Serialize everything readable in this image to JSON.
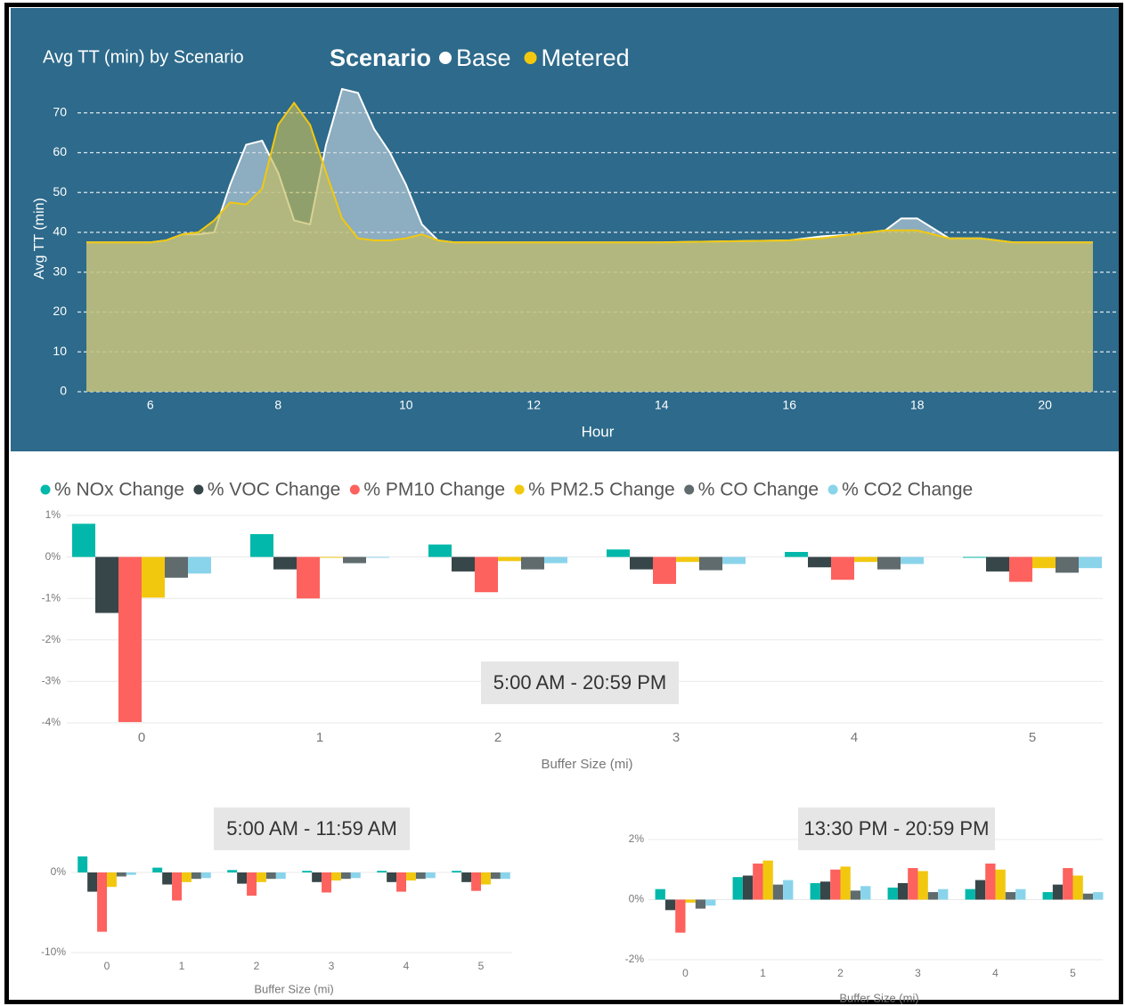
{
  "chart_data": [
    {
      "type": "area",
      "title": "Avg TT (min) by Scenario",
      "legend_title": "Scenario",
      "x_label": "Hour",
      "y_label": "Avg TT (min)",
      "x": [
        5,
        6,
        6.25,
        6.5,
        6.75,
        7,
        7.25,
        7.5,
        7.75,
        8,
        8.25,
        8.5,
        8.75,
        9,
        9.25,
        9.5,
        9.75,
        10,
        10.25,
        10.5,
        10.75,
        12,
        14,
        16,
        16.5,
        17,
        17.5,
        17.75,
        18,
        18.25,
        18.5,
        19,
        19.5,
        20,
        20.75
      ],
      "series": [
        {
          "name": "Base",
          "color": "#ffffff",
          "values": [
            37.5,
            37.5,
            38,
            39.5,
            39.5,
            40,
            52,
            62,
            63,
            55,
            43,
            42,
            62,
            76,
            75,
            66,
            60,
            52,
            42,
            38,
            37.5,
            37.5,
            37.5,
            38,
            39,
            39.5,
            40.5,
            43.5,
            43.5,
            41,
            38.5,
            38.5,
            37.5,
            37.5,
            37.5
          ]
        },
        {
          "name": "Metered",
          "color": "#f2c80f",
          "values": [
            37.5,
            37.5,
            38,
            39.5,
            40,
            43,
            47.5,
            47,
            51,
            67,
            72.5,
            67,
            55,
            43.5,
            38.5,
            38,
            38,
            38.5,
            39.5,
            38,
            37.5,
            37.5,
            37.5,
            38,
            38.5,
            39.5,
            40.5,
            40.5,
            40.5,
            39.5,
            38.5,
            38.5,
            37.5,
            37.5,
            37.5
          ]
        }
      ],
      "xlim": [
        5,
        20.75
      ],
      "xticks": [
        6,
        8,
        10,
        12,
        14,
        16,
        18,
        20
      ],
      "ylim": [
        0,
        80
      ],
      "yticks": [
        0,
        10,
        20,
        30,
        40,
        50,
        60,
        70
      ],
      "grid": true
    },
    {
      "type": "bar",
      "annotation": "5:00 AM - 20:59 PM",
      "x_label": "Buffer Size (mi)",
      "categories": [
        "0",
        "1",
        "2",
        "3",
        "4",
        "5"
      ],
      "series": [
        {
          "name": "% NOx Change",
          "color": "#01b8aa",
          "values": [
            0.8,
            0.55,
            0.3,
            0.18,
            0.12,
            -0.02
          ]
        },
        {
          "name": "% VOC Change",
          "color": "#374649",
          "values": [
            -1.35,
            -0.3,
            -0.35,
            -0.3,
            -0.25,
            -0.35
          ]
        },
        {
          "name": "% PM10 Change",
          "color": "#fd625e",
          "values": [
            -3.98,
            -1.0,
            -0.85,
            -0.65,
            -0.55,
            -0.6
          ]
        },
        {
          "name": "% PM2.5 Change",
          "color": "#f2c80f",
          "values": [
            -0.98,
            -0.02,
            -0.1,
            -0.12,
            -0.12,
            -0.27
          ]
        },
        {
          "name": "% CO Change",
          "color": "#5f6b6d",
          "values": [
            -0.5,
            -0.15,
            -0.3,
            -0.32,
            -0.3,
            -0.38
          ]
        },
        {
          "name": "% CO2 Change",
          "color": "#8ad4eb",
          "values": [
            -0.4,
            -0.02,
            -0.15,
            -0.17,
            -0.17,
            -0.27
          ]
        }
      ],
      "ylim": [
        -4,
        1
      ],
      "yticks": [
        {
          "value": -4,
          "label": "-4%"
        },
        {
          "value": -3,
          "label": "-3%"
        },
        {
          "value": -2,
          "label": "-2%"
        },
        {
          "value": -1,
          "label": "-1%"
        },
        {
          "value": 0,
          "label": "0%"
        },
        {
          "value": 1,
          "label": "1%"
        }
      ],
      "grid": true
    },
    {
      "type": "bar",
      "annotation": "5:00 AM - 11:59 AM",
      "x_label": "Buffer Size (mi)",
      "categories": [
        "0",
        "1",
        "2",
        "3",
        "4",
        "5"
      ],
      "series": [
        {
          "color": "#01b8aa",
          "values": [
            2,
            0.6,
            0.3,
            0.2,
            0.2,
            0.2
          ]
        },
        {
          "color": "#374649",
          "values": [
            -2.4,
            -1.5,
            -1.4,
            -1.2,
            -1.2,
            -1.2
          ]
        },
        {
          "color": "#fd625e",
          "values": [
            -7.4,
            -3.5,
            -2.9,
            -2.5,
            -2.4,
            -2.3
          ]
        },
        {
          "color": "#f2c80f",
          "values": [
            -1.8,
            -1.2,
            -1.2,
            -1.0,
            -1.0,
            -1.5
          ]
        },
        {
          "color": "#5f6b6d",
          "values": [
            -0.5,
            -0.8,
            -0.8,
            -0.8,
            -0.8,
            -0.8
          ]
        },
        {
          "color": "#8ad4eb",
          "values": [
            -0.3,
            -0.7,
            -0.8,
            -0.7,
            -0.7,
            -0.8
          ]
        }
      ],
      "ylim": [
        -10,
        2
      ],
      "yticks": [
        {
          "value": -10,
          "label": "-10%"
        },
        {
          "value": 0,
          "label": "0%"
        }
      ],
      "grid": true
    },
    {
      "type": "bar",
      "annotation": "13:30 PM - 20:59 PM",
      "x_label": "Buffer Size (mi)",
      "categories": [
        "0",
        "1",
        "2",
        "3",
        "4",
        "5"
      ],
      "series": [
        {
          "color": "#01b8aa",
          "values": [
            0.35,
            0.75,
            0.55,
            0.4,
            0.35,
            0.25
          ]
        },
        {
          "color": "#374649",
          "values": [
            -0.35,
            0.8,
            0.6,
            0.55,
            0.65,
            0.5
          ]
        },
        {
          "color": "#fd625e",
          "values": [
            -1.1,
            1.2,
            1.0,
            1.05,
            1.2,
            1.05
          ]
        },
        {
          "color": "#f2c80f",
          "values": [
            -0.1,
            1.3,
            1.1,
            0.95,
            1.0,
            0.8
          ]
        },
        {
          "color": "#5f6b6d",
          "values": [
            -0.3,
            0.5,
            0.3,
            0.25,
            0.25,
            0.2
          ]
        },
        {
          "color": "#8ad4eb",
          "values": [
            -0.2,
            0.65,
            0.45,
            0.35,
            0.35,
            0.25
          ]
        }
      ],
      "ylim": [
        -2,
        2
      ],
      "yticks": [
        {
          "value": -2,
          "label": "-2%"
        },
        {
          "value": 0,
          "label": "0%"
        },
        {
          "value": 2,
          "label": "2%"
        }
      ],
      "grid": true
    }
  ]
}
